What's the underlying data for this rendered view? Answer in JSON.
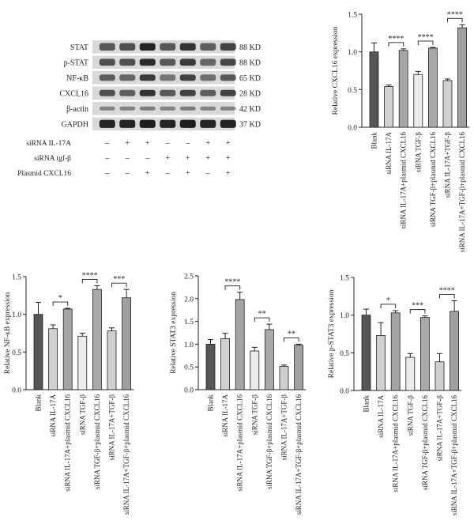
{
  "blot": {
    "rows": [
      {
        "label": "STAT",
        "kd": "88 KD",
        "intensity": [
          0.55,
          0.6,
          0.9,
          0.55,
          0.8,
          0.5,
          0.7
        ],
        "thickness": 0.65
      },
      {
        "label": "p-STAT",
        "kd": "88 KD",
        "intensity": [
          0.6,
          0.6,
          0.85,
          0.55,
          0.75,
          0.45,
          0.65
        ],
        "thickness": 0.6
      },
      {
        "label": "NF-κB",
        "kd": "65 KD",
        "intensity": [
          0.5,
          0.45,
          0.75,
          0.35,
          0.7,
          0.4,
          0.55
        ],
        "thickness": 0.55
      },
      {
        "label": "CXCL16",
        "kd": "28 KD",
        "intensity": [
          0.6,
          0.5,
          0.8,
          0.55,
          0.7,
          0.5,
          0.7
        ],
        "thickness": 0.55
      },
      {
        "label": "β-actin",
        "kd": "42 KD",
        "intensity": [
          0.25,
          0.25,
          0.3,
          0.25,
          0.3,
          0.25,
          0.25
        ],
        "thickness": 0.35
      },
      {
        "label": "GAPDH",
        "kd": "37 KD",
        "intensity": [
          0.9,
          0.9,
          0.95,
          0.9,
          0.95,
          0.9,
          0.9
        ],
        "thickness": 0.7
      }
    ],
    "treatments": [
      {
        "label": "siRNA IL-17A",
        "signs": [
          "–",
          "+",
          "+",
          "–",
          "–",
          "+",
          "+"
        ]
      },
      {
        "label": "siRNA tgf-β",
        "signs": [
          "–",
          "–",
          "–",
          "+",
          "+",
          "+",
          "+"
        ]
      },
      {
        "label": "Plasmid CXCL16",
        "signs": [
          "–",
          "–",
          "+",
          "–",
          "+",
          "–",
          "+"
        ]
      }
    ]
  },
  "chart_data": [
    {
      "id": "cxcl16",
      "type": "bar",
      "ylabel": "Relative CXCL16 expression",
      "ylim": [
        0,
        1.5
      ],
      "yticks": [
        "0.0",
        "0.5",
        "1.0",
        "1.5"
      ],
      "categories": [
        "Blank",
        "siRNA IL-17A",
        "siRNA IL-17A+plasmid CXCL16",
        "siRNA TGF-β",
        "siRNA TGF-β+plasmid CXCL16",
        "siRNA IL-17A+TGF-β",
        "siRNA IL-17A+TGF-β+plasmid CXCL16"
      ],
      "values": [
        1.0,
        0.54,
        1.02,
        0.7,
        1.05,
        0.62,
        1.32
      ],
      "errors": [
        0.12,
        0.02,
        0.02,
        0.04,
        0.01,
        0.02,
        0.04
      ],
      "sig": [
        {
          "a": 1,
          "b": 2,
          "label": "****"
        },
        {
          "a": 3,
          "b": 4,
          "label": "****"
        },
        {
          "a": 5,
          "b": 6,
          "label": "****"
        }
      ]
    },
    {
      "id": "nfkb",
      "type": "bar",
      "ylabel": "Relative NF-κB expression",
      "ylim": [
        0,
        1.5
      ],
      "yticks": [
        "0.0",
        "0.5",
        "1.0",
        "1.5"
      ],
      "categories": [
        "Blank",
        "siRNA IL-17A",
        "siRNA IL-17A+plasmid CXCL16",
        "siRNA TGF-β",
        "siRNA TGF-β+plasmid CXCL16",
        "siRNA IL-17A+TGF-β",
        "siRNA IL-17A+TGF-β+plasmid CXCL16"
      ],
      "values": [
        1.0,
        0.81,
        1.07,
        0.71,
        1.33,
        0.78,
        1.22
      ],
      "errors": [
        0.16,
        0.05,
        0.01,
        0.04,
        0.05,
        0.04,
        0.11
      ],
      "sig": [
        {
          "a": 1,
          "b": 2,
          "label": "*"
        },
        {
          "a": 3,
          "b": 4,
          "label": "****"
        },
        {
          "a": 5,
          "b": 6,
          "label": "***"
        }
      ]
    },
    {
      "id": "stat3",
      "type": "bar",
      "ylabel": "Relative STAT3 expression",
      "ylim": [
        0,
        2.5
      ],
      "yticks": [
        "0.0",
        "0.5",
        "1.0",
        "1.5",
        "2.0",
        "2.5"
      ],
      "categories": [
        "Blank",
        "siRNA IL-17A",
        "siRNA IL-17A+plasmid CXCL16",
        "siRNA TGF-β",
        "siRNA TGF-β+plasmid CXCL16",
        "siRNA IL-17A+TGF-β",
        "siRNA IL-17A+TGF-β+plasmid CXCL16"
      ],
      "values": [
        1.0,
        1.12,
        1.98,
        0.85,
        1.32,
        0.51,
        0.98
      ],
      "errors": [
        0.1,
        0.12,
        0.16,
        0.08,
        0.12,
        0.03,
        0.02
      ],
      "sig": [
        {
          "a": 1,
          "b": 2,
          "label": "****"
        },
        {
          "a": 3,
          "b": 4,
          "label": "**"
        },
        {
          "a": 5,
          "b": 6,
          "label": "**"
        }
      ]
    },
    {
      "id": "pstat3",
      "type": "bar",
      "ylabel": "Relative p-STAT3 expression",
      "ylim": [
        0,
        1.5
      ],
      "yticks": [
        "0.0",
        "0.5",
        "1.0",
        "1.5"
      ],
      "categories": [
        "Blank",
        "siRNA IL-17A",
        "siRNA IL-17A+plasmid CXCL16",
        "siRNA TGF-β",
        "siRNA TGF-β+plasmid CXCL16",
        "siRNA IL-17A+TGF-β",
        "siRNA IL-17A+TGF-β+plasmid CXCL16"
      ],
      "values": [
        1.0,
        0.73,
        1.03,
        0.44,
        0.97,
        0.38,
        1.05
      ],
      "errors": [
        0.08,
        0.17,
        0.03,
        0.05,
        0.02,
        0.11,
        0.14
      ],
      "sig": [
        {
          "a": 1,
          "b": 2,
          "label": "*"
        },
        {
          "a": 3,
          "b": 4,
          "label": "***"
        },
        {
          "a": 5,
          "b": 6,
          "label": "****"
        }
      ]
    }
  ],
  "colors": {
    "bars": [
      "#555555",
      "#d0d0d0",
      "#a5a5a5",
      "#ebebeb",
      "#a9a9a9",
      "#cfcfcf",
      "#a0a0a0"
    ],
    "axis": "#231f20",
    "band": "#161616",
    "membrane": "#d9d9d9"
  }
}
